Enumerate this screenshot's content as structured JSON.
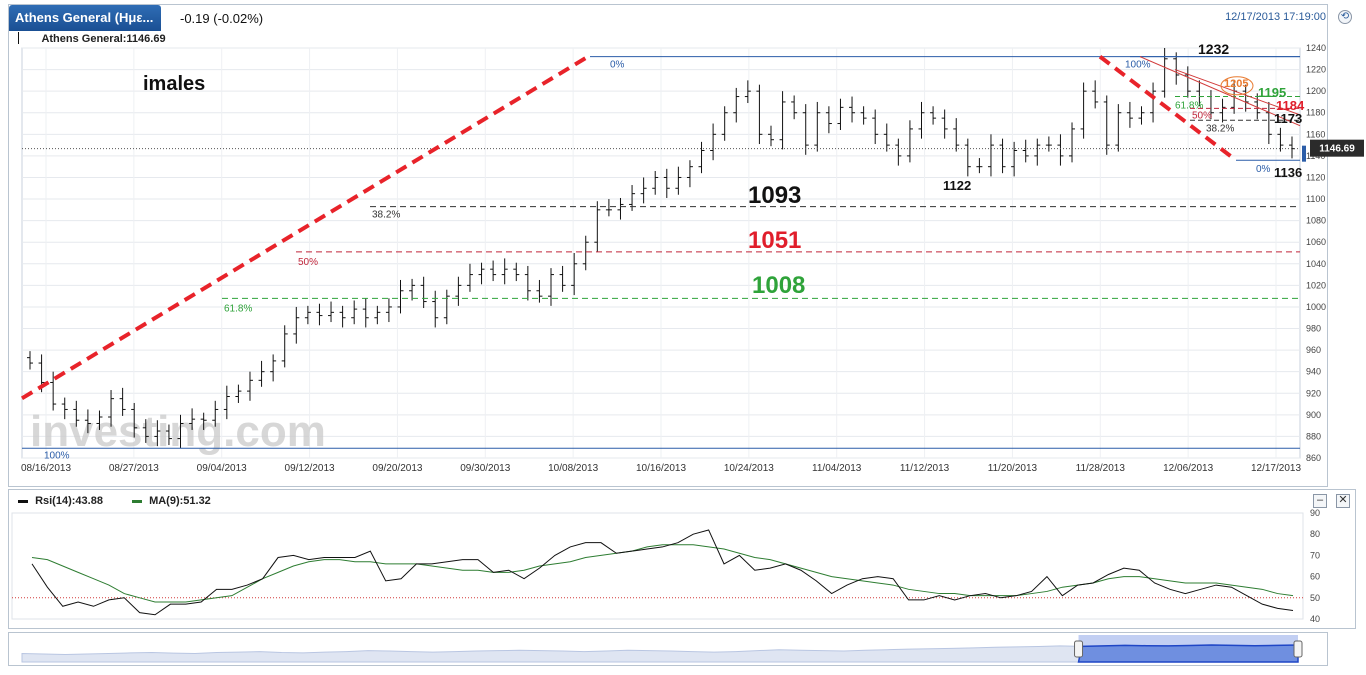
{
  "header": {
    "instrument_tab": "Athens General (Ημε...",
    "change": "-0.19 (-0.02%)",
    "timestamp": "12/17/2013 17:19:00"
  },
  "main_legend": "Athens General:1146.69",
  "rsi_legend": {
    "rsi": "Rsi(14):43.88",
    "ma": "MA(9):51.32"
  },
  "buttons": {
    "minimize": "–",
    "close": "✕"
  },
  "colors": {
    "trend_red": "#e8232a",
    "fib_black": "#222222",
    "fib_red": "#c0263b",
    "fib_green": "#2fa33a",
    "rsi_line": "#111111",
    "ma_line": "#2e7d32",
    "price_tag": "#2b2b2b",
    "overview_fill": "#6f8fe0"
  },
  "chart_data": {
    "type": "bar",
    "title": "",
    "xlabel": "",
    "ylabel": "",
    "ylim": [
      860,
      1240
    ],
    "yticks": [
      860,
      880,
      900,
      920,
      940,
      960,
      980,
      1000,
      1020,
      1040,
      1060,
      1080,
      1100,
      1120,
      1140,
      1160,
      1180,
      1200,
      1220,
      1240
    ],
    "x_tick_labels": [
      "08/16/2013",
      "08/27/2013",
      "09/04/2013",
      "09/12/2013",
      "09/20/2013",
      "09/30/2013",
      "10/08/2013",
      "10/16/2013",
      "10/24/2013",
      "11/04/2013",
      "11/12/2013",
      "11/20/2013",
      "11/28/2013",
      "12/06/2013",
      "12/17/2013"
    ],
    "last_price": 1146.69,
    "last_price_label": "1146.69",
    "watermark": "investing.com",
    "ohlc_close": [
      948,
      930,
      910,
      905,
      895,
      892,
      898,
      915,
      905,
      888,
      880,
      885,
      878,
      892,
      896,
      895,
      905,
      917,
      922,
      932,
      940,
      950,
      975,
      990,
      995,
      992,
      995,
      990,
      998,
      990,
      995,
      1000,
      1015,
      1020,
      1005,
      990,
      1010,
      1020,
      1030,
      1035,
      1030,
      1035,
      1030,
      1015,
      1010,
      1030,
      1020,
      1040,
      1060,
      1090,
      1090,
      1095,
      1105,
      1110,
      1120,
      1110,
      1120,
      1130,
      1145,
      1160,
      1180,
      1195,
      1200,
      1160,
      1155,
      1190,
      1180,
      1150,
      1180,
      1170,
      1185,
      1180,
      1175,
      1160,
      1150,
      1140,
      1165,
      1180,
      1175,
      1165,
      1150,
      1130,
      1130,
      1150,
      1130,
      1145,
      1140,
      1150,
      1150,
      1140,
      1165,
      1200,
      1190,
      1150,
      1180,
      1175,
      1180,
      1200,
      1230,
      1215,
      1200,
      1195,
      1180,
      1185,
      1200,
      1190,
      1180,
      1160,
      1150,
      1146.69
    ],
    "annotations": [
      {
        "text": "imales",
        "color": "#111111"
      },
      {
        "text": "1093",
        "color": "#111111"
      },
      {
        "text": "1051",
        "color": "#e01e2b"
      },
      {
        "text": "1008",
        "color": "#2fa33a"
      },
      {
        "text": "1232",
        "color": "#111111"
      },
      {
        "text": "1205",
        "color": "#e87a30"
      },
      {
        "text": "1195",
        "color": "#2fa33a"
      },
      {
        "text": "1184",
        "color": "#e01e2b"
      },
      {
        "text": "1173",
        "color": "#111111"
      },
      {
        "text": "1136",
        "color": "#111111"
      },
      {
        "text": "1122",
        "color": "#111111"
      }
    ],
    "fib_left": {
      "levels": [
        {
          "label": "0%",
          "value": 1232
        },
        {
          "label": "38.2%",
          "value": 1093
        },
        {
          "label": "50%",
          "value": 1051
        },
        {
          "label": "61.8%",
          "value": 1008
        },
        {
          "label": "100%",
          "value": 869
        }
      ]
    },
    "fib_right": {
      "levels": [
        {
          "label": "100%",
          "value": 1232
        },
        {
          "label": "61.8%",
          "value": 1195
        },
        {
          "label": "50%",
          "value": 1184
        },
        {
          "label": "38.2%",
          "value": 1173
        },
        {
          "label": "0%",
          "value": 1136
        }
      ]
    },
    "rsi_panel": {
      "ylim": [
        40,
        90
      ],
      "yticks": [
        40,
        50,
        60,
        70,
        80,
        90
      ],
      "oversold_line": 50,
      "rsi": [
        66,
        55,
        46,
        48,
        46,
        49,
        50,
        43,
        42,
        47,
        47,
        48,
        54,
        54,
        56,
        59,
        69,
        70,
        68,
        69,
        69,
        69,
        72,
        58,
        59,
        66,
        66,
        67,
        68,
        68,
        62,
        63,
        59,
        64,
        70,
        74,
        76,
        76,
        71,
        72,
        73,
        74,
        76,
        80,
        82,
        66,
        70,
        63,
        64,
        66,
        63,
        58,
        52,
        56,
        59,
        60,
        59,
        49,
        49,
        51,
        49,
        51,
        52,
        50,
        51,
        53,
        60,
        51,
        56,
        57,
        61,
        64,
        63,
        57,
        54,
        52,
        54,
        56,
        55,
        51,
        47,
        45,
        44
      ],
      "ma": [
        69,
        68,
        65,
        62,
        59,
        56,
        52,
        50,
        48,
        48,
        48,
        49,
        50,
        51,
        55,
        59,
        62,
        65,
        67,
        68,
        68,
        67,
        67,
        66,
        66,
        66,
        65,
        64,
        63,
        63,
        62,
        62,
        63,
        65,
        66,
        67,
        69,
        70,
        71,
        72,
        74,
        75,
        75,
        75,
        74,
        73,
        71,
        69,
        68,
        66,
        64,
        62,
        60,
        59,
        58,
        57,
        56,
        54,
        53,
        52,
        52,
        51,
        51,
        51,
        51,
        52,
        53,
        55,
        56,
        57,
        59,
        60,
        60,
        59,
        58,
        57,
        57,
        57,
        56,
        55,
        54,
        52,
        51
      ]
    },
    "overview": {
      "values": [
        0.45,
        0.42,
        0.4,
        0.42,
        0.45,
        0.48,
        0.5,
        0.47,
        0.45,
        0.5,
        0.52,
        0.55,
        0.5,
        0.48,
        0.52,
        0.55,
        0.6,
        0.58,
        0.55,
        0.52,
        0.55,
        0.58,
        0.6,
        0.62,
        0.6,
        0.58,
        0.55,
        0.58,
        0.62,
        0.6,
        0.58,
        0.55,
        0.52,
        0.55,
        0.6,
        0.65,
        0.62,
        0.6,
        0.58,
        0.62,
        0.65,
        0.68,
        0.7,
        0.72,
        0.75,
        0.78,
        0.8,
        0.82,
        0.85,
        0.83,
        0.85,
        0.88,
        0.86,
        0.85,
        0.87,
        0.9,
        0.88,
        0.86,
        0.88,
        0.9
      ],
      "selection_range": [
        0.828,
        1.0
      ]
    }
  }
}
